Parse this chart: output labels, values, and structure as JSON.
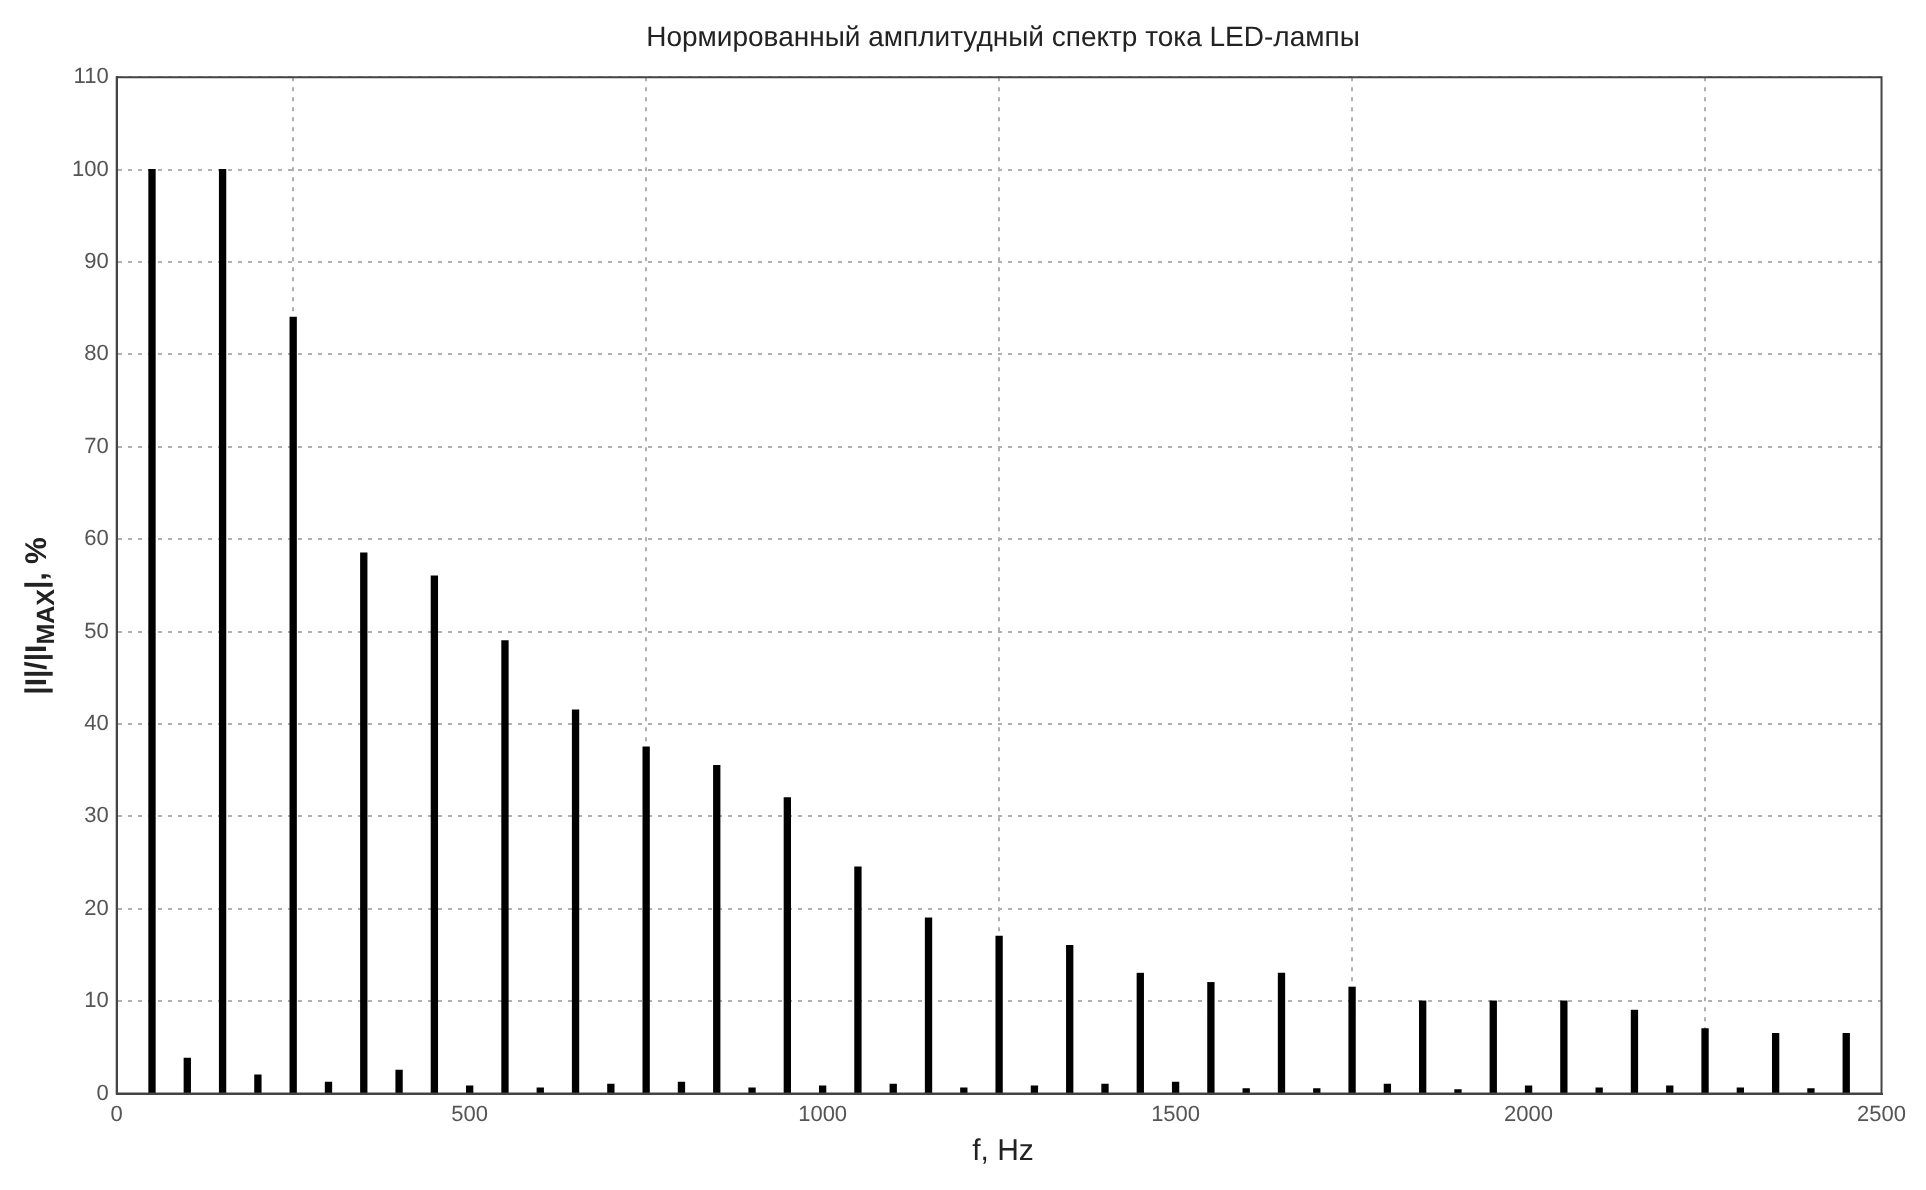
{
  "chart_data": {
    "type": "bar",
    "title": "Нормированный амплитудный спектр тока LED-лампы",
    "xlabel": "f, Hz",
    "ylabel": "|I|/|I$_{MAX}$|, %",
    "x": [
      50,
      100,
      150,
      200,
      250,
      300,
      350,
      400,
      450,
      500,
      550,
      600,
      650,
      700,
      750,
      800,
      850,
      900,
      950,
      1000,
      1050,
      1100,
      1150,
      1200,
      1250,
      1300,
      1350,
      1400,
      1450,
      1500,
      1550,
      1600,
      1650,
      1700,
      1750,
      1800,
      1850,
      1900,
      1950,
      2000,
      2050,
      2100,
      2150,
      2200,
      2250,
      2300,
      2350,
      2400,
      2450
    ],
    "values": [
      100,
      3.8,
      100,
      2,
      84,
      1.2,
      58.5,
      2.5,
      56,
      0.8,
      49,
      0.6,
      41.5,
      1,
      37.5,
      1.2,
      35.5,
      0.6,
      32,
      0.8,
      24.5,
      1,
      19,
      0.6,
      17,
      0.8,
      16,
      1,
      13,
      1.2,
      12,
      0.5,
      13,
      0.5,
      11.5,
      1,
      10,
      0.4,
      10,
      0.8,
      10,
      0.6,
      9,
      0.8,
      7,
      0.6,
      6.5,
      0.5,
      6.5
    ],
    "color": "#000000",
    "xlim": [
      0,
      2500
    ],
    "xticks": [
      0,
      500,
      1000,
      1500,
      2000,
      2500
    ],
    "ylim": [
      0,
      110
    ],
    "yticks": [
      0,
      10,
      20,
      30,
      40,
      50,
      60,
      70,
      80,
      90,
      100,
      110
    ],
    "grid": true
  }
}
